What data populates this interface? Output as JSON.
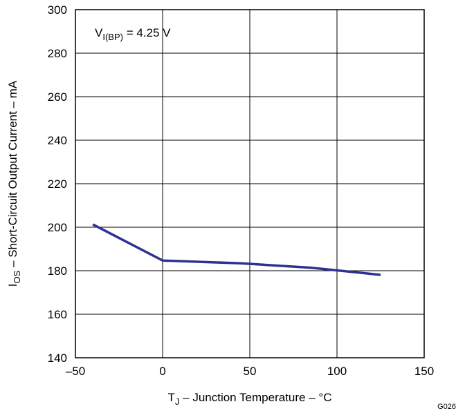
{
  "chart_data": {
    "type": "line",
    "xlabel": {
      "main": "T",
      "sub": "J",
      "rest": " – Junction Temperature – °C"
    },
    "ylabel": {
      "main": "I",
      "sub": "OS",
      "rest": " – Short-Circuit Output Current – mA"
    },
    "xlim": [
      -50,
      150
    ],
    "ylim": [
      140,
      300
    ],
    "x_ticks": [
      -50,
      0,
      50,
      100,
      150
    ],
    "x_tick_labels": [
      "–50",
      "0",
      "50",
      "100",
      "150"
    ],
    "y_ticks": [
      140,
      160,
      180,
      200,
      220,
      240,
      260,
      280,
      300
    ],
    "y_tick_labels": [
      "140",
      "160",
      "180",
      "200",
      "220",
      "240",
      "260",
      "280",
      "300"
    ],
    "grid": true,
    "annotation": {
      "main": "V",
      "sub": "I(BP)",
      "rest": " = 4.25 V"
    },
    "series": [
      {
        "color": "#2e3192",
        "x": [
          -40,
          0,
          45,
          85,
          125
        ],
        "y": [
          201.3,
          184.7,
          183.4,
          181.4,
          178.1
        ]
      }
    ]
  },
  "figure_id": "G026"
}
